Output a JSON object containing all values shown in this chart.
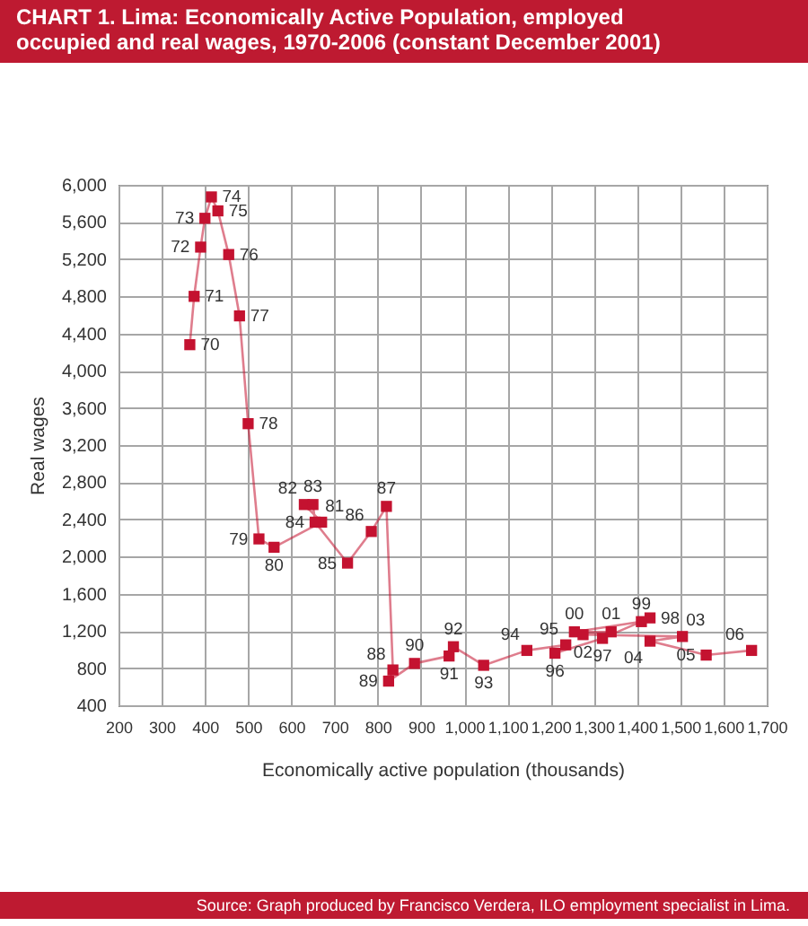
{
  "chart_data": {
    "type": "line",
    "title": "CHART 1. Lima: Economically Active Population, employed occupied and real wages, 1970-2006 (constant December 2001)",
    "xlabel": "Economically active population (thousands)",
    "ylabel": "Real wages",
    "x": [
      365,
      375,
      390,
      400,
      415,
      430,
      455,
      480,
      500,
      525,
      560,
      670,
      630,
      650,
      655,
      730,
      785,
      820,
      835,
      825,
      885,
      965,
      975,
      1045,
      1145,
      1235,
      1210,
      1320,
      1430,
      1410,
      1255,
      1340,
      1275,
      1505,
      1430,
      1560,
      1665
    ],
    "series": [
      {
        "color": "#c41230",
        "values": [
          4280,
          4800,
          5330,
          5640,
          5870,
          5720,
          5250,
          4590,
          3430,
          2190,
          2100,
          2370,
          2560,
          2560,
          2370,
          1930,
          2270,
          2540,
          780,
          660,
          850,
          930,
          1030,
          830,
          990,
          1050,
          960,
          1120,
          1340,
          1300,
          1190,
          1190,
          1160,
          1140,
          1090,
          940,
          990
        ]
      }
    ],
    "marker": "square",
    "line_style": "solid",
    "grid": true,
    "xlim": [
      200,
      1700
    ],
    "xticks": [
      200,
      300,
      400,
      500,
      600,
      700,
      800,
      900,
      {
        "value": 1000,
        "label": "1,000"
      },
      {
        "value": 1100,
        "label": "1,100"
      },
      {
        "value": 1200,
        "label": "1,200"
      },
      {
        "value": 1300,
        "label": "1,300"
      },
      {
        "value": 1400,
        "label": "1,400"
      },
      {
        "value": 1500,
        "label": "1,500"
      },
      {
        "value": 1600,
        "label": "1,600"
      },
      {
        "value": 1700,
        "label": "1,700"
      }
    ],
    "ylim": [
      400,
      6000
    ],
    "yticks": [
      400,
      800,
      {
        "value": 1200,
        "label": "1,200"
      },
      {
        "value": 1600,
        "label": "1,600"
      },
      {
        "value": 2000,
        "label": "2,000"
      },
      {
        "value": 2400,
        "label": "2,400"
      },
      {
        "value": 2800,
        "label": "2,800"
      },
      {
        "value": 3200,
        "label": "3,200"
      },
      {
        "value": 3600,
        "label": "3,600"
      },
      {
        "value": 4000,
        "label": "4,000"
      },
      {
        "value": 4400,
        "label": "4,400"
      },
      {
        "value": 4800,
        "label": "4,800"
      },
      {
        "value": 5200,
        "label": "5,200"
      },
      {
        "value": 5600,
        "label": "5,600"
      },
      {
        "value": 6000,
        "label": "6,000"
      }
    ],
    "annotations": [
      "Source: Graph produced by Francisco Verdera, ILO employment specialist in Lima.",
      {
        "text": "70",
        "x": 365,
        "y": 4280
      },
      {
        "text": "71",
        "x": 375,
        "y": 4800
      },
      {
        "text": "72",
        "x": 390,
        "y": 5330
      },
      {
        "text": "73",
        "x": 400,
        "y": 5640
      },
      {
        "text": "74",
        "x": 415,
        "y": 5870
      },
      {
        "text": "75",
        "x": 430,
        "y": 5720
      },
      {
        "text": "76",
        "x": 455,
        "y": 5250
      },
      {
        "text": "77",
        "x": 480,
        "y": 4590
      },
      {
        "text": "78",
        "x": 500,
        "y": 3430
      },
      {
        "text": "79",
        "x": 525,
        "y": 2190
      },
      {
        "text": "80",
        "x": 560,
        "y": 2100
      },
      {
        "text": "81",
        "x": 670,
        "y": 2370
      },
      {
        "text": "82",
        "x": 630,
        "y": 2560
      },
      {
        "text": "83",
        "x": 650,
        "y": 2560
      },
      {
        "text": "84",
        "x": 655,
        "y": 2370
      },
      {
        "text": "85",
        "x": 730,
        "y": 1930
      },
      {
        "text": "86",
        "x": 785,
        "y": 2270
      },
      {
        "text": "87",
        "x": 820,
        "y": 2540
      },
      {
        "text": "88",
        "x": 835,
        "y": 780
      },
      {
        "text": "89",
        "x": 825,
        "y": 660
      },
      {
        "text": "90",
        "x": 885,
        "y": 850
      },
      {
        "text": "91",
        "x": 965,
        "y": 930
      },
      {
        "text": "92",
        "x": 975,
        "y": 1030
      },
      {
        "text": "93",
        "x": 1045,
        "y": 830
      },
      {
        "text": "94",
        "x": 1145,
        "y": 990
      },
      {
        "text": "95",
        "x": 1235,
        "y": 1050
      },
      {
        "text": "96",
        "x": 1210,
        "y": 960
      },
      {
        "text": "97",
        "x": 1320,
        "y": 1120
      },
      {
        "text": "98",
        "x": 1430,
        "y": 1340
      },
      {
        "text": "99",
        "x": 1410,
        "y": 1300
      },
      {
        "text": "00",
        "x": 1255,
        "y": 1190
      },
      {
        "text": "01",
        "x": 1340,
        "y": 1190
      },
      {
        "text": "02",
        "x": 1275,
        "y": 1160
      },
      {
        "text": "03",
        "x": 1505,
        "y": 1140
      },
      {
        "text": "04",
        "x": 1430,
        "y": 1090
      },
      {
        "text": "05",
        "x": 1560,
        "y": 940
      },
      {
        "text": "06",
        "x": 1665,
        "y": 990
      }
    ]
  }
}
